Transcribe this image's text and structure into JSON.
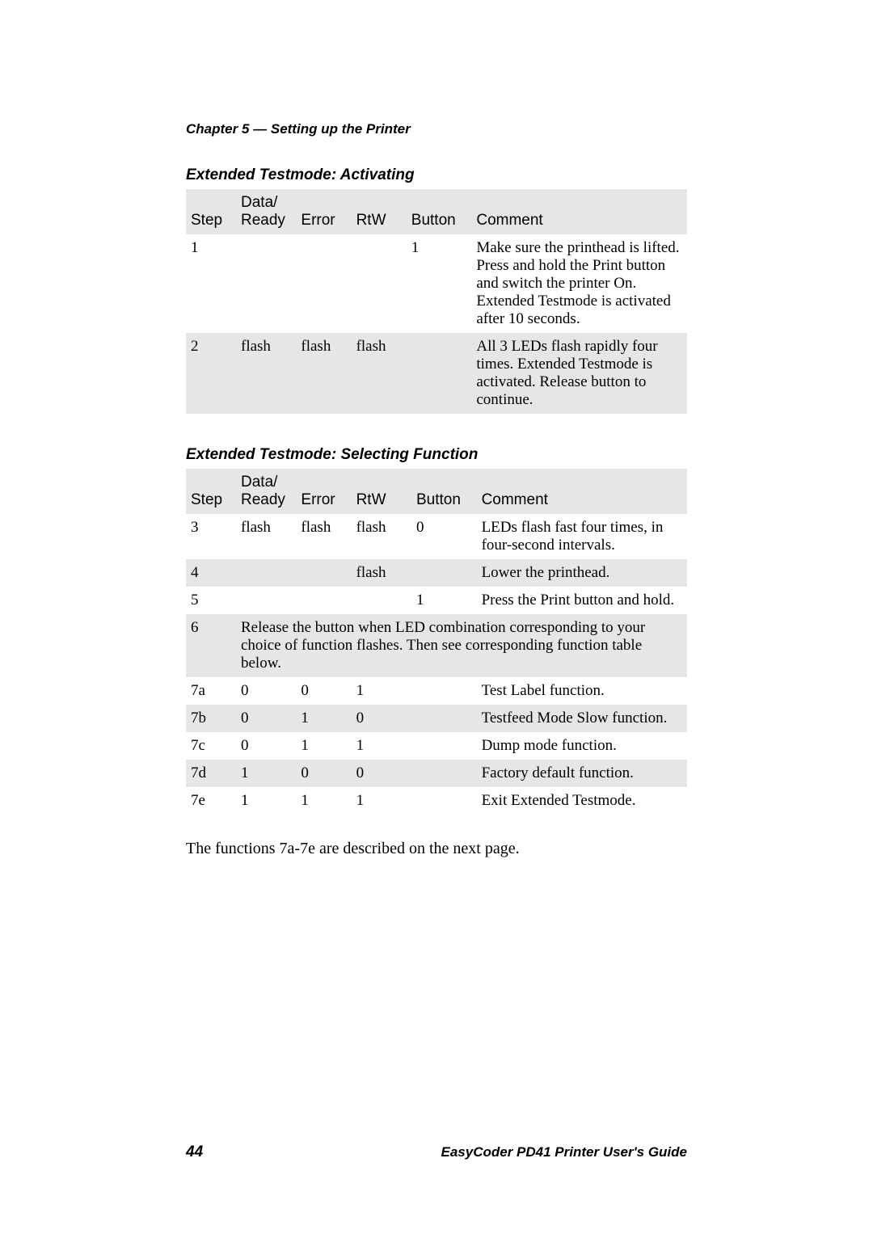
{
  "chapter": "Chapter 5 — Setting up the Printer",
  "section1_title": "Extended Testmode: Activating",
  "section2_title": "Extended Testmode: Selecting Function",
  "headers": {
    "step": "Step",
    "data_ready_line1": "Data/",
    "data_ready_line2": "Ready",
    "error": "Error",
    "rtw": "RtW",
    "button": "Button",
    "comment": "Comment"
  },
  "table1": {
    "rows": [
      {
        "step": "1",
        "data": "",
        "error": "",
        "rtw": "",
        "button": "1",
        "comment": "Make sure the printhead is lifted. Press and hold the Print button and switch the printer On. Extended Testmode is activated after 10 seconds."
      },
      {
        "step": "2",
        "data": "flash",
        "error": "flash",
        "rtw": "flash",
        "button": "",
        "comment": "All 3 LEDs flash rapidly four times. Extended Testmode is activated. Release button to continue."
      }
    ]
  },
  "table2": {
    "rows_part1": [
      {
        "step": "3",
        "data": "flash",
        "error": "flash",
        "rtw": "flash",
        "button": "0",
        "comment": "LEDs flash fast four times, in four-second intervals."
      },
      {
        "step": "4",
        "data": "",
        "error": "",
        "rtw": "flash",
        "button": "",
        "comment": "Lower the printhead."
      },
      {
        "step": "5",
        "data": "",
        "error": "",
        "rtw": "",
        "button": "1",
        "comment": "Press the Print button and hold."
      }
    ],
    "merged": {
      "step": "6",
      "text": "Release the button when LED combination corresponding to your choice of function flashes. Then see corresponding function table below."
    },
    "rows_part2": [
      {
        "step": "7a",
        "data": "0",
        "error": "0",
        "rtw": "1",
        "button": "",
        "comment": "Test Label function."
      },
      {
        "step": "7b",
        "data": "0",
        "error": "1",
        "rtw": "0",
        "button": "",
        "comment": "Testfeed Mode Slow function."
      },
      {
        "step": "7c",
        "data": "0",
        "error": "1",
        "rtw": "1",
        "button": "",
        "comment": "Dump mode function."
      },
      {
        "step": "7d",
        "data": "1",
        "error": "0",
        "rtw": "0",
        "button": "",
        "comment": "Factory default function."
      },
      {
        "step": "7e",
        "data": "1",
        "error": "1",
        "rtw": "1",
        "button": "",
        "comment": "Exit Extended Testmode."
      }
    ]
  },
  "body_text": "The functions 7a-7e are described on the next page.",
  "footer": {
    "page": "44",
    "title": "EasyCoder PD41 Printer User's Guide"
  },
  "colors": {
    "background": "#ffffff",
    "text": "#000000",
    "alt_row": "#e6e6e6"
  }
}
